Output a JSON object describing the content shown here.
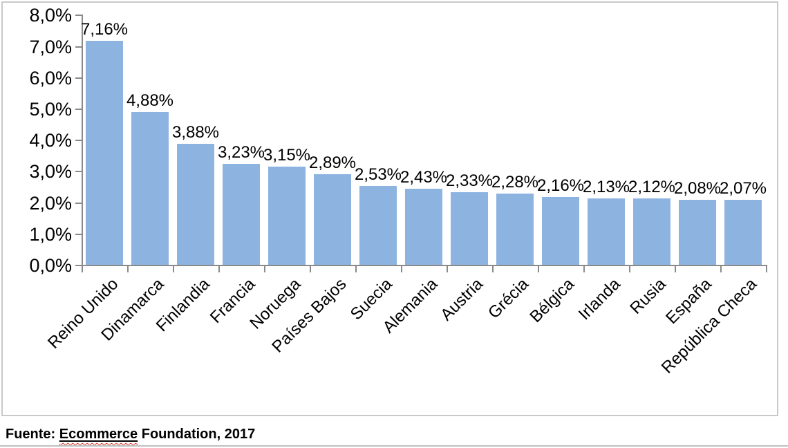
{
  "chart_data": {
    "type": "bar",
    "title": "",
    "xlabel": "",
    "ylabel": "",
    "categories": [
      "Reino Unido",
      "Dinamarca",
      "Finlandia",
      "Francia",
      "Noruega",
      "Países Bajos",
      "Suecia",
      "Alemania",
      "Austria",
      "Grécia",
      "Bélgica",
      "Irlanda",
      "Rusia",
      "España",
      "República Checa"
    ],
    "values": [
      7.16,
      4.88,
      3.88,
      3.23,
      3.15,
      2.89,
      2.53,
      2.43,
      2.33,
      2.28,
      2.16,
      2.13,
      2.12,
      2.08,
      2.07
    ],
    "value_labels": [
      "7,16%",
      "4,88%",
      "3,88%",
      "3,23%",
      "3,15%",
      "2,89%",
      "2,53%",
      "2,43%",
      "2,33%",
      "2,28%",
      "2,16%",
      "2,13%",
      "2,12%",
      "2,08%",
      "2,07%"
    ],
    "y_tick_labels": [
      "8,0%",
      "7,0%",
      "6,0%",
      "5,0%",
      "4,0%",
      "3,0%",
      "2,0%",
      "1,0%",
      "0,0%"
    ],
    "ylim": [
      0,
      8
    ],
    "y_tick_step": 1,
    "grid": false,
    "legend": "none",
    "bar_color": "#8db4e0",
    "axis_color": "#8a8a8a",
    "frame_border_color": "#c9c9c9",
    "bottom_rule_color": "#c0c0c0",
    "squiggle_color": "#e0342b"
  },
  "footer": {
    "prefix": "Fuente:",
    "source_underlined": "Ecommerce",
    "source_rest": "Foundation, 2017"
  }
}
